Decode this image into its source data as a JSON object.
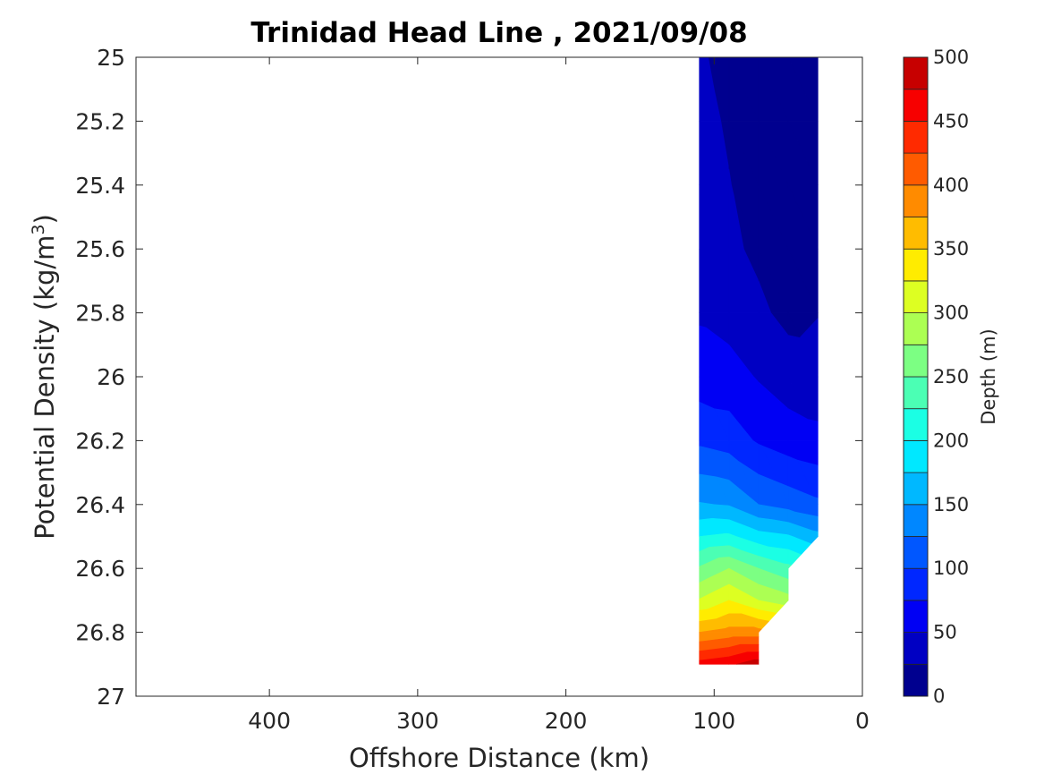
{
  "chart_data": {
    "type": "filled-contour",
    "title": "Trinidad Head Line , 2021/09/08",
    "xlabel": "Offshore Distance (km)",
    "ylabel_main": "Potential Density (kg/m",
    "ylabel_sup": "3",
    "ylabel_end": ")",
    "x_reversed": true,
    "y_reversed": true,
    "xlim": [
      490,
      0
    ],
    "ylim": [
      25,
      27
    ],
    "x_ticks": [
      400,
      300,
      200,
      100,
      0
    ],
    "x_tick_labels": [
      "400",
      "300",
      "200",
      "100",
      "0"
    ],
    "y_ticks": [
      25,
      25.2,
      25.4,
      25.6,
      25.8,
      26,
      26.2,
      26.4,
      26.6,
      26.8,
      27
    ],
    "y_tick_labels": [
      "25",
      "25.2",
      "25.4",
      "25.6",
      "25.8",
      "26",
      "26.2",
      "26.4",
      "26.6",
      "26.8",
      "27"
    ],
    "grid": false,
    "colorbar": {
      "label": "Depth (m)",
      "min": 0,
      "max": 500,
      "tick_values": [
        0,
        50,
        100,
        150,
        200,
        250,
        300,
        350,
        400,
        450,
        500
      ],
      "tick_labels": [
        "0",
        "50",
        "100",
        "150",
        "200",
        "250",
        "300",
        "350",
        "400",
        "450",
        "500"
      ],
      "levels": [
        0,
        25,
        50,
        75,
        100,
        125,
        150,
        175,
        200,
        225,
        250,
        275,
        300,
        325,
        350,
        375,
        400,
        425,
        450,
        475,
        500
      ],
      "colors": [
        "#00008f",
        "#0000c3",
        "#0000f4",
        "#0027ff",
        "#0057ff",
        "#0087ff",
        "#00b8ff",
        "#00e8ff",
        "#1bffe4",
        "#4bffb4",
        "#7cff83",
        "#acff53",
        "#ddff22",
        "#ffec00",
        "#ffbc00",
        "#ff8b00",
        "#ff5b00",
        "#ff2a00",
        "#f70000",
        "#c70000"
      ]
    },
    "contour_data": {
      "x_km": [
        110,
        90,
        70,
        50,
        30
      ],
      "density_levels": [
        25.0,
        25.2,
        25.4,
        25.6,
        25.8,
        26.0,
        26.2,
        26.4,
        26.5,
        26.6,
        26.7,
        26.8,
        26.9
      ],
      "depth_m": [
        [
          28,
          18,
          10,
          3,
          3
        ],
        [
          33,
          22,
          12,
          6,
          10
        ],
        [
          38,
          26,
          14,
          12,
          16
        ],
        [
          42,
          30,
          20,
          14,
          20
        ],
        [
          47,
          40,
          30,
          18,
          24
        ],
        [
          62,
          60,
          48,
          38,
          36
        ],
        [
          95,
          88,
          72,
          62,
          56
        ],
        [
          152,
          148,
          125,
          115,
          105
        ],
        [
          200,
          205,
          185,
          178,
          158
        ],
        [
          253,
          275,
          250,
          232,
          null
        ],
        [
          302,
          325,
          300,
          285,
          null
        ],
        [
          375,
          385,
          385,
          null,
          null
        ],
        [
          460,
          470,
          490,
          null,
          null
        ]
      ]
    }
  }
}
